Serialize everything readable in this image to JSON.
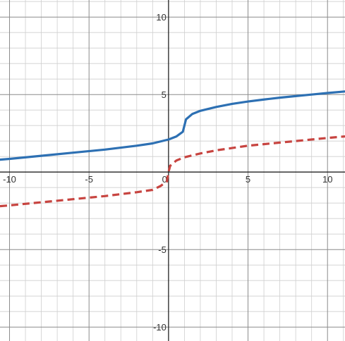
{
  "chart_data": {
    "type": "line",
    "xlim": [
      -10.6,
      11.1
    ],
    "ylim": [
      -10.9,
      11.1
    ],
    "grid": true,
    "minor_grid_step": 1,
    "major_grid_step": 5,
    "x_ticks": [
      {
        "value": -10,
        "label": "-10"
      },
      {
        "value": -5,
        "label": "-5"
      },
      {
        "value": 0,
        "label": "0"
      },
      {
        "value": 5,
        "label": "5"
      },
      {
        "value": 10,
        "label": "10"
      }
    ],
    "y_ticks": [
      {
        "value": 10,
        "label": "10"
      },
      {
        "value": 5,
        "label": "5"
      },
      {
        "value": -5,
        "label": "-5"
      },
      {
        "value": -10,
        "label": "-10"
      }
    ],
    "series": [
      {
        "style": "solid",
        "color": "#2d70b3",
        "x": [
          -10.6,
          -10,
          -8,
          -6,
          -4,
          -2,
          -1,
          0,
          0.5,
          0.9,
          1,
          1.1,
          1.5,
          2,
          3,
          4,
          5,
          6,
          7,
          8,
          9,
          10,
          11.1
        ],
        "y": [
          0.8,
          0.85,
          1.05,
          1.25,
          1.45,
          1.7,
          1.85,
          2.1,
          2.3,
          2.6,
          3.0,
          3.4,
          3.75,
          3.95,
          4.2,
          4.4,
          4.55,
          4.68,
          4.8,
          4.9,
          5.0,
          5.1,
          5.2
        ]
      },
      {
        "style": "dashed",
        "color": "#c74440",
        "x": [
          -10.6,
          -10,
          -8,
          -6,
          -4,
          -2,
          -1,
          -0.5,
          -0.1,
          0,
          0.1,
          0.5,
          1,
          2,
          3,
          4,
          5,
          6,
          7,
          8,
          9,
          10,
          11.1
        ],
        "y": [
          -2.2,
          -2.15,
          -1.95,
          -1.75,
          -1.55,
          -1.3,
          -1.15,
          -0.9,
          -0.6,
          0,
          0.4,
          0.75,
          0.95,
          1.2,
          1.4,
          1.55,
          1.7,
          1.8,
          1.9,
          2.0,
          2.1,
          2.2,
          2.3
        ]
      }
    ]
  }
}
